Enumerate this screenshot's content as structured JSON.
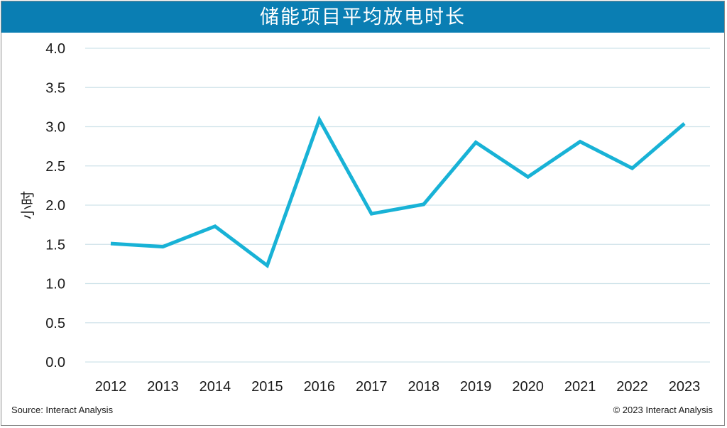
{
  "title": "储能项目平均放电时长",
  "footer": {
    "source": "Source: Interact Analysis",
    "copyright": "© 2023 Interact Analysis"
  },
  "colors": {
    "title_bar": "#0a7eb3",
    "line": "#18b2d6",
    "grid": "#cfe3ea"
  },
  "chart_data": {
    "type": "line",
    "title": "储能项目平均放电时长",
    "xlabel": "",
    "ylabel": "小时",
    "categories": [
      "2012",
      "2013",
      "2014",
      "2015",
      "2016",
      "2017",
      "2018",
      "2019",
      "2020",
      "2021",
      "2022",
      "2023"
    ],
    "values": [
      1.51,
      1.47,
      1.73,
      1.23,
      3.09,
      1.89,
      2.01,
      2.8,
      2.36,
      2.81,
      2.47,
      3.04
    ],
    "ylim": [
      0,
      4.0
    ],
    "yticks": [
      "0.0",
      "0.5",
      "1.0",
      "1.5",
      "2.0",
      "2.5",
      "3.0",
      "3.5",
      "4.0"
    ],
    "grid": true,
    "legend": "none"
  }
}
